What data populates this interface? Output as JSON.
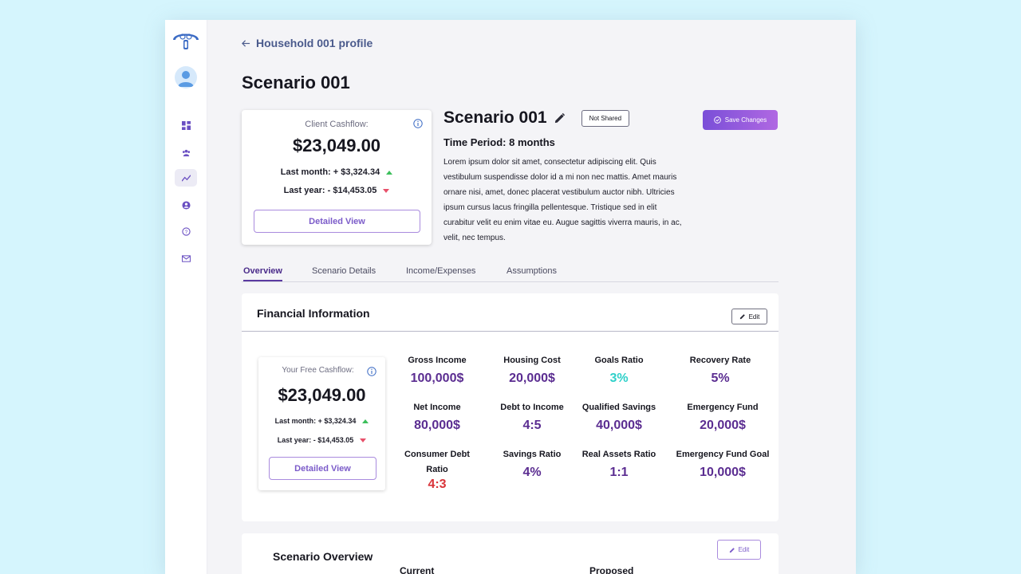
{
  "nav": {
    "back_label": "Household 001 profile",
    "items": [
      "dashboard-icon",
      "users-icon",
      "chart-icon",
      "profile-icon",
      "help-icon",
      "mail-icon"
    ]
  },
  "page": {
    "title": "Scenario 001"
  },
  "client_cashflow": {
    "label": "Client Cashflow:",
    "amount": "$23,049.00",
    "last_month": "Last month: + $3,324.34",
    "last_year": "Last year: - $14,453.05",
    "button": "Detailed View"
  },
  "scenario": {
    "name": "Scenario 001",
    "share_status": "Not Shared",
    "time_period": "Time Period: 8 months",
    "description": "Lorem ipsum dolor sit amet, consectetur adipiscing elit. Quis vestibulum suspendisse dolor id a mi non nec mattis. Amet mauris ornare nisi, amet, donec placerat vestibulum auctor nibh. Ultricies ipsum cursus lacus fringilla pellentesque. Tristique sed in elit curabitur velit eu enim vitae eu. Augue sagittis viverra mauris, in ac, velit, nec tempus.",
    "save_label": "Save Changes"
  },
  "tabs": [
    "Overview",
    "Scenario Details",
    "Income/Expenses",
    "Assumptions"
  ],
  "financial": {
    "title": "Financial Information",
    "edit_label": "Edit",
    "free_cashflow": {
      "label": "Your Free Cashflow:",
      "amount": "$23,049.00",
      "last_month": "Last month: + $3,324.34",
      "last_year": "Last year: - $14,453.05",
      "button": "Detailed View"
    },
    "metrics": [
      {
        "label": "Gross Income",
        "value": "100,000$",
        "color": "#5b2d91"
      },
      {
        "label": "Housing Cost",
        "value": "20,000$",
        "color": "#5b2d91"
      },
      {
        "label": "Goals Ratio",
        "value": "3%",
        "color": "#2fd0c9"
      },
      {
        "label": "Recovery Rate",
        "value": "5%",
        "color": "#5b2d91"
      },
      {
        "label": "Net Income",
        "value": "80,000$",
        "color": "#5b2d91"
      },
      {
        "label": "Debt to Income",
        "value": "4:5",
        "color": "#5b2d91"
      },
      {
        "label": "Qualified Savings",
        "value": "40,000$",
        "color": "#5b2d91"
      },
      {
        "label": "Emergency Fund",
        "value": "20,000$",
        "color": "#5b2d91"
      },
      {
        "label": "Consumer Debt Ratio",
        "value": "4:3",
        "color": "#d9343a"
      },
      {
        "label": "Savings Ratio",
        "value": "4%",
        "color": "#5b2d91"
      },
      {
        "label": "Real Assets Ratio",
        "value": "1:1",
        "color": "#5b2d91"
      },
      {
        "label": "Emergency Fund Goal",
        "value": "10,000$",
        "color": "#5b2d91"
      }
    ]
  },
  "overview": {
    "title": "Scenario Overview",
    "edit_label": "Edit",
    "col_current": "Current",
    "col_proposed": "Proposed"
  }
}
